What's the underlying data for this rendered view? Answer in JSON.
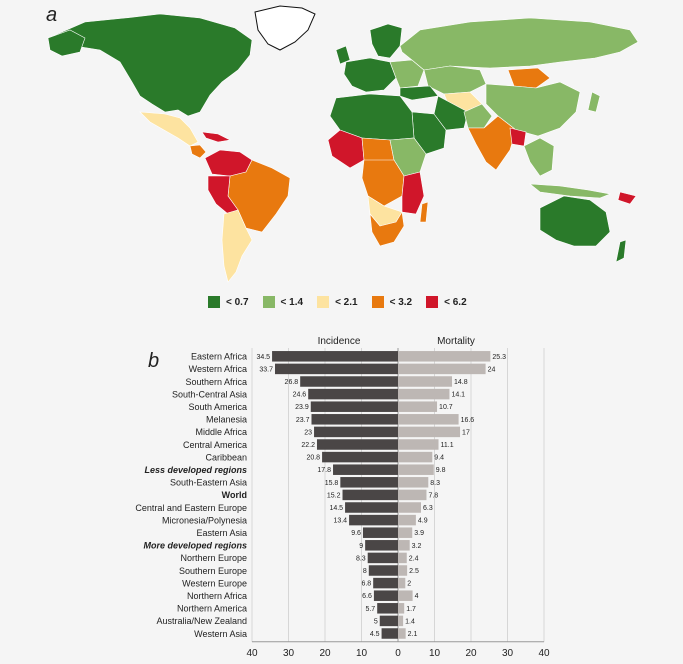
{
  "panel_a_label": "a",
  "panel_b_label": "b",
  "map": {
    "colors": {
      "c1": "#2a7a2a",
      "c2": "#88b866",
      "c3": "#fde3a0",
      "c4": "#e8790f",
      "c5": "#d0162a"
    },
    "legend": [
      {
        "label": "< 0.7",
        "color": "#2a7a2a"
      },
      {
        "label": "< 1.4",
        "color": "#88b866"
      },
      {
        "label": "< 2.1",
        "color": "#fde3a0"
      },
      {
        "label": "< 3.2",
        "color": "#e8790f"
      },
      {
        "label": "< 6.2",
        "color": "#d0162a"
      }
    ]
  },
  "chart_data": {
    "type": "bar",
    "orientation": "horizontal-diverging",
    "title": "",
    "left_header": "Incidence",
    "right_header": "Mortality",
    "categories": [
      "Eastern Africa",
      "Western Africa",
      "Southern Africa",
      "South-Central Asia",
      "South America",
      "Melanesia",
      "Middle Africa",
      "Central America",
      "Caribbean",
      "Less developed regions",
      "South-Eastern Asia",
      "World",
      "Central and Eastern Europe",
      "Micronesia/Polynesia",
      "Eastern Asia",
      "More developed regions",
      "Northern Europe",
      "Southern Europe",
      "Western Europe",
      "Northern Africa",
      "Northern America",
      "Australia/New Zealand",
      "Western Asia"
    ],
    "category_style": {
      "Less developed regions": "bold-italic",
      "World": "bold",
      "More developed regions": "bold-italic"
    },
    "series": [
      {
        "name": "Incidence",
        "color": "#4a4646",
        "values": [
          34.5,
          33.7,
          26.8,
          24.6,
          23.9,
          23.7,
          23,
          22.2,
          20.8,
          17.8,
          15.8,
          15.2,
          14.5,
          13.4,
          9.6,
          9,
          8.3,
          8,
          6.8,
          6.6,
          5.7,
          5,
          4.5
        ]
      },
      {
        "name": "Mortality",
        "color": "#bdb7b4",
        "values": [
          25.3,
          24,
          14.8,
          14.1,
          10.7,
          16.6,
          17,
          11.1,
          9.4,
          9.8,
          8.3,
          7.8,
          6.3,
          4.9,
          3.9,
          3.2,
          2.4,
          2.5,
          2,
          4,
          1.7,
          1.4,
          2.1
        ]
      }
    ],
    "x_ticks": [
      "40",
      "30",
      "20",
      "10",
      "0",
      "10",
      "20",
      "30",
      "40"
    ],
    "xlim": [
      -40,
      40
    ],
    "grid": true
  }
}
